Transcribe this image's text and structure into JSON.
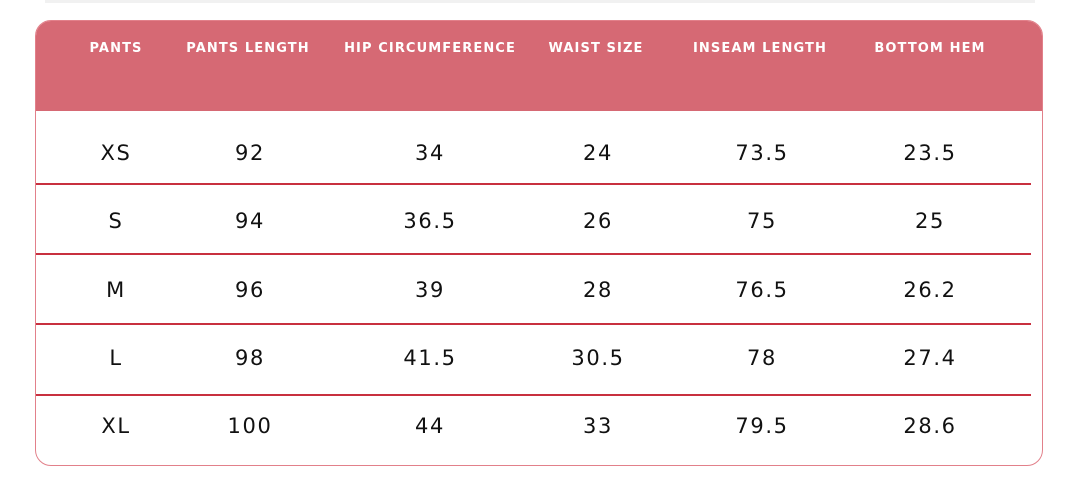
{
  "columns": [
    "PANTS",
    "PANTS LENGTH",
    "HIP CIRCUMFERENCE",
    "WAIST SIZE",
    "INSEAM LENGTH",
    "BOTTOM HEM"
  ],
  "rows": [
    [
      "XS",
      "92",
      "34",
      "24",
      "73.5",
      "23.5"
    ],
    [
      "S",
      "94",
      "36.5",
      "26",
      "75",
      "25"
    ],
    [
      "M",
      "96",
      "39",
      "28",
      "76.5",
      "26.2"
    ],
    [
      "L",
      "98",
      "41.5",
      "30.5",
      "78",
      "27.4"
    ],
    [
      "XL",
      "100",
      "44",
      "33",
      "79.5",
      "28.6"
    ]
  ],
  "colors": {
    "header_background": "#d66974",
    "header_text": "#ffffff",
    "row_divider": "#c8303f",
    "table_border": "#e2808a",
    "cell_text": "#111111"
  }
}
